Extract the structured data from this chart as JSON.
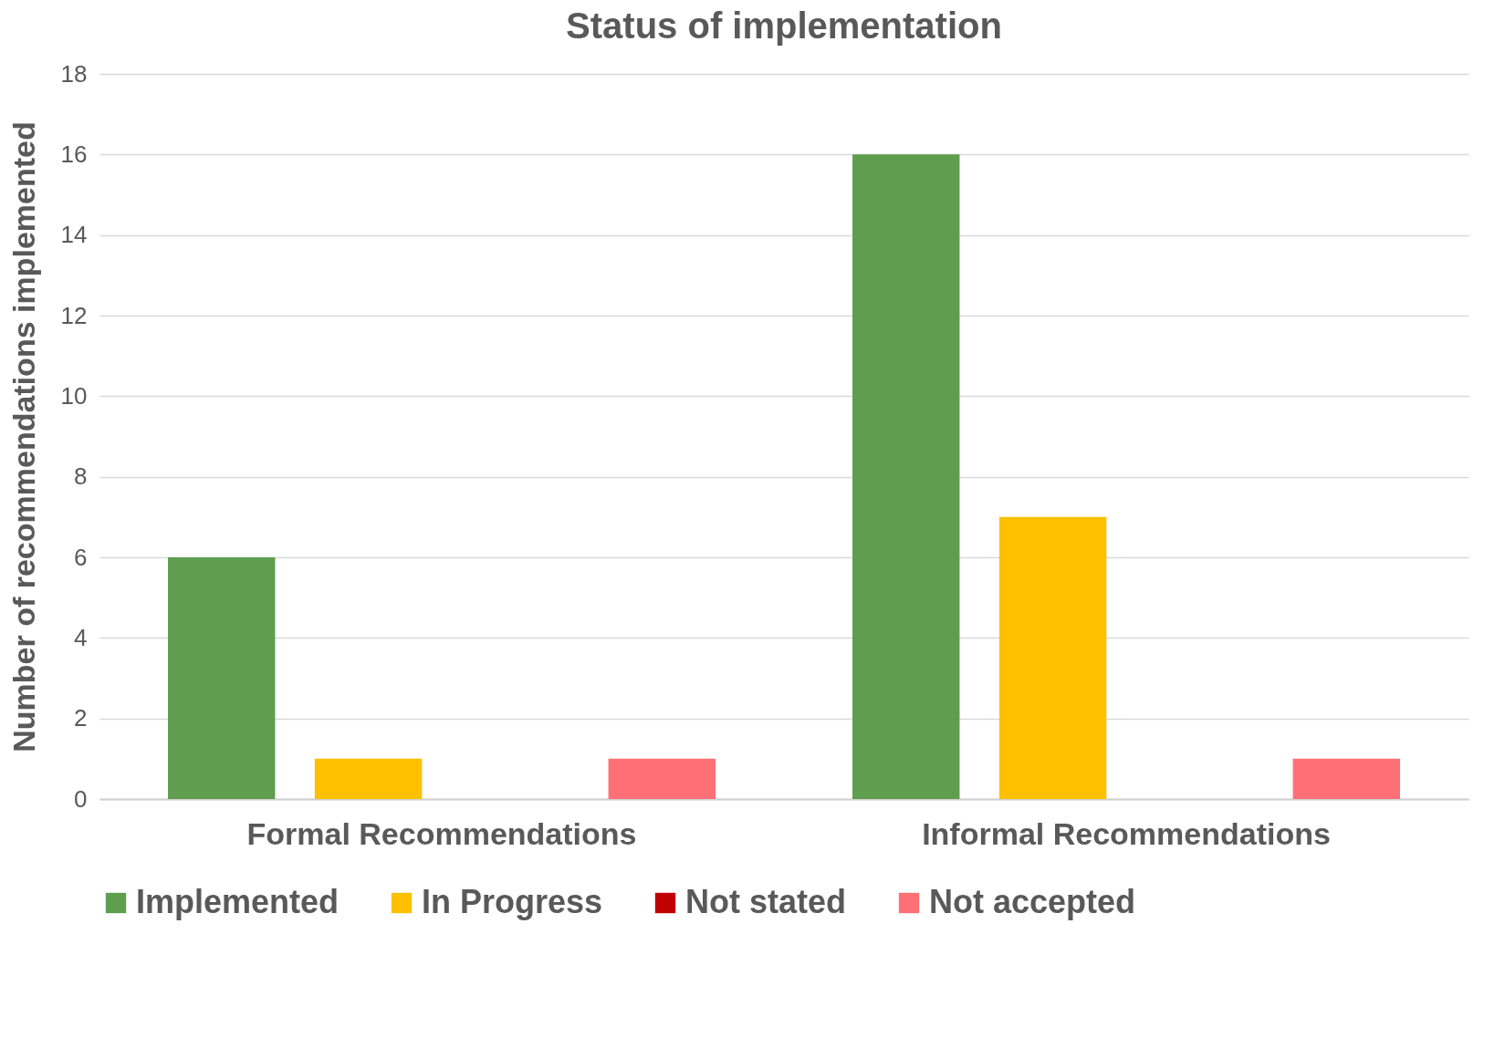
{
  "chart_data": {
    "type": "bar",
    "title": "Status of implementation",
    "ylabel": "Number of recommendations implemented",
    "categories": [
      "Formal Recommendations",
      "Informal Recommendations"
    ],
    "series": [
      {
        "name": "Implemented",
        "color": "#5f9e4e",
        "values": [
          6,
          16
        ]
      },
      {
        "name": "In Progress",
        "color": "#ffc000",
        "values": [
          1,
          7
        ]
      },
      {
        "name": "Not stated",
        "color": "#c00000",
        "values": [
          0,
          0
        ]
      },
      {
        "name": "Not accepted",
        "color": "#ff7076",
        "values": [
          1,
          1
        ]
      }
    ],
    "ylim": [
      0,
      18
    ],
    "yticks": [
      0,
      2,
      4,
      6,
      8,
      10,
      12,
      14,
      16,
      18
    ],
    "grid": "y",
    "legend": "bottom"
  }
}
